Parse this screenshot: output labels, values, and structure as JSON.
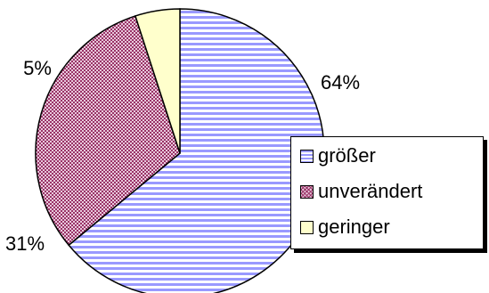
{
  "chart_data": {
    "type": "pie",
    "categories": [
      "größer",
      "unverändert",
      "geringer"
    ],
    "values": [
      64,
      31,
      5
    ],
    "value_labels": [
      "64%",
      "31%",
      "5%"
    ],
    "colors": [
      "#9999ff",
      "#993366",
      "#ffffcc"
    ],
    "patterns": [
      "horizontal-stripes",
      "crosshatch",
      "solid"
    ],
    "legend_position": "right"
  }
}
